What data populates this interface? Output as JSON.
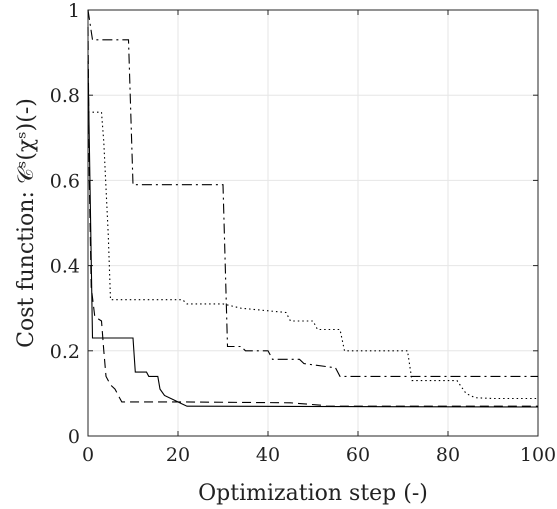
{
  "chart_data": {
    "type": "line",
    "xlabel": "Optimization step (-)",
    "ylabel": "Cost function: 𝒞ˢ(χˢ)(-)",
    "xlim": [
      0,
      100
    ],
    "ylim": [
      0,
      1
    ],
    "xticks": [
      0,
      20,
      40,
      60,
      80,
      100
    ],
    "yticks": [
      0,
      0.2,
      0.4,
      0.6,
      0.8,
      1
    ],
    "xtick_labels": [
      "0",
      "20",
      "40",
      "60",
      "80",
      "100"
    ],
    "ytick_labels": [
      "0",
      "0.2",
      "0.4",
      "0.6",
      "0.8",
      "1"
    ],
    "grid": true,
    "series": [
      {
        "style": "solid",
        "color": "#000000",
        "points": [
          [
            0,
            0.88
          ],
          [
            1,
            0.23
          ],
          [
            10,
            0.23
          ],
          [
            10.5,
            0.15
          ],
          [
            13,
            0.15
          ],
          [
            13.5,
            0.14
          ],
          [
            15.5,
            0.14
          ],
          [
            16,
            0.11
          ],
          [
            17,
            0.095
          ],
          [
            19,
            0.085
          ],
          [
            21,
            0.075
          ],
          [
            22,
            0.07
          ],
          [
            100,
            0.068
          ]
        ]
      },
      {
        "style": "dashed",
        "color": "#000000",
        "points": [
          [
            0,
            0.96
          ],
          [
            0.3,
            0.6
          ],
          [
            0.7,
            0.35
          ],
          [
            1.5,
            0.28
          ],
          [
            3,
            0.27
          ],
          [
            3.5,
            0.2
          ],
          [
            4,
            0.14
          ],
          [
            5,
            0.12
          ],
          [
            6,
            0.11
          ],
          [
            7,
            0.09
          ],
          [
            7.5,
            0.08
          ],
          [
            20,
            0.08
          ],
          [
            45,
            0.078
          ],
          [
            52,
            0.072
          ],
          [
            53,
            0.07
          ],
          [
            100,
            0.07
          ]
        ]
      },
      {
        "style": "dotted",
        "color": "#000000",
        "points": [
          [
            0,
            0.76
          ],
          [
            3,
            0.76
          ],
          [
            3.5,
            0.69
          ],
          [
            4.5,
            0.47
          ],
          [
            5,
            0.32
          ],
          [
            21,
            0.32
          ],
          [
            22,
            0.31
          ],
          [
            30,
            0.31
          ],
          [
            34,
            0.3
          ],
          [
            44,
            0.29
          ],
          [
            45,
            0.27
          ],
          [
            50,
            0.27
          ],
          [
            51,
            0.25
          ],
          [
            56,
            0.25
          ],
          [
            57,
            0.2
          ],
          [
            71,
            0.2
          ],
          [
            72,
            0.13
          ],
          [
            82,
            0.13
          ],
          [
            84,
            0.1
          ],
          [
            86,
            0.09
          ],
          [
            90,
            0.088
          ],
          [
            100,
            0.088
          ]
        ]
      },
      {
        "style": "dashdot",
        "color": "#000000",
        "points": [
          [
            0,
            1
          ],
          [
            1,
            0.93
          ],
          [
            9,
            0.93
          ],
          [
            10,
            0.59
          ],
          [
            30,
            0.59
          ],
          [
            31,
            0.21
          ],
          [
            34,
            0.21
          ],
          [
            35,
            0.2
          ],
          [
            40,
            0.2
          ],
          [
            41,
            0.18
          ],
          [
            47,
            0.18
          ],
          [
            48,
            0.17
          ],
          [
            55,
            0.16
          ],
          [
            56,
            0.14
          ],
          [
            100,
            0.14
          ]
        ]
      }
    ]
  }
}
